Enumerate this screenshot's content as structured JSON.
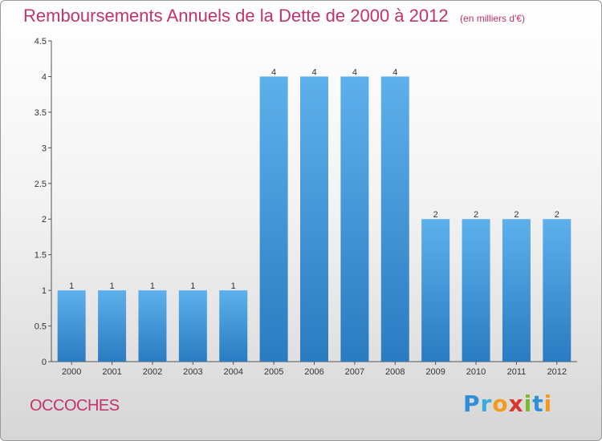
{
  "header": {
    "title": "Remboursements Annuels de la Dette de 2000 à 2012",
    "unit_note": "(en milliers d'€)"
  },
  "footer": {
    "commune": "OCCOCHES",
    "brand": "Proxiti"
  },
  "colors": {
    "title": "#c2326c",
    "bar_light": "#5eb0ec",
    "bar_dark": "#2a7bc0",
    "axis": "#555555"
  },
  "chart_data": {
    "type": "bar",
    "title": "Remboursements Annuels de la Dette de 2000 à 2012",
    "subtitle": "(en milliers d'€)",
    "xlabel": "",
    "ylabel": "",
    "categories": [
      "2000",
      "2001",
      "2002",
      "2003",
      "2004",
      "2005",
      "2006",
      "2007",
      "2008",
      "2009",
      "2010",
      "2011",
      "2012"
    ],
    "values": [
      1,
      1,
      1,
      1,
      1,
      4,
      4,
      4,
      4,
      2,
      2,
      2,
      2
    ],
    "data_labels": [
      "1",
      "1",
      "1",
      "1",
      "1",
      "4",
      "4",
      "4",
      "4",
      "2",
      "2",
      "2",
      "2"
    ],
    "yticks": [
      "0",
      "0.5",
      "1",
      "1.5",
      "2",
      "2.5",
      "3",
      "3.5",
      "4",
      "4.5"
    ],
    "ylim": [
      0,
      4.5
    ],
    "grid": false,
    "legend": "none"
  }
}
